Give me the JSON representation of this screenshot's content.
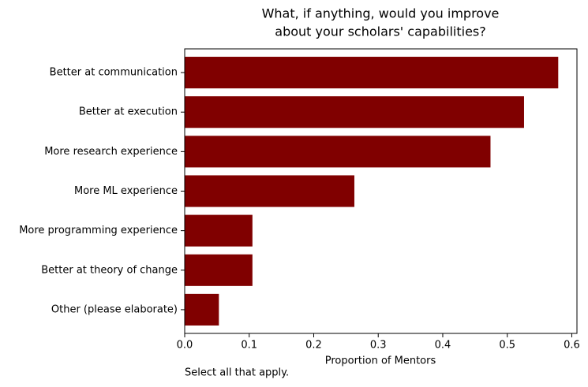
{
  "chart_data": {
    "type": "barh",
    "title": [
      "What, if anything, would you improve",
      "about your scholars' capabilities?"
    ],
    "categories": [
      "Better at communication",
      "Better at execution",
      "More research experience",
      "More ML experience",
      "More programming experience",
      "Better at theory of change",
      "Other (please elaborate)"
    ],
    "values": [
      0.579,
      0.526,
      0.474,
      0.263,
      0.105,
      0.105,
      0.053
    ],
    "color": "#800000",
    "xlim": [
      0,
      0.608
    ],
    "xticks": [
      {
        "value": 0,
        "label": "0.0"
      },
      0.1,
      0.2,
      0.3,
      0.4,
      0.5,
      0.6
    ],
    "xlabel": "Proportion of Mentors",
    "note": "Select all that apply.",
    "grid": false
  }
}
